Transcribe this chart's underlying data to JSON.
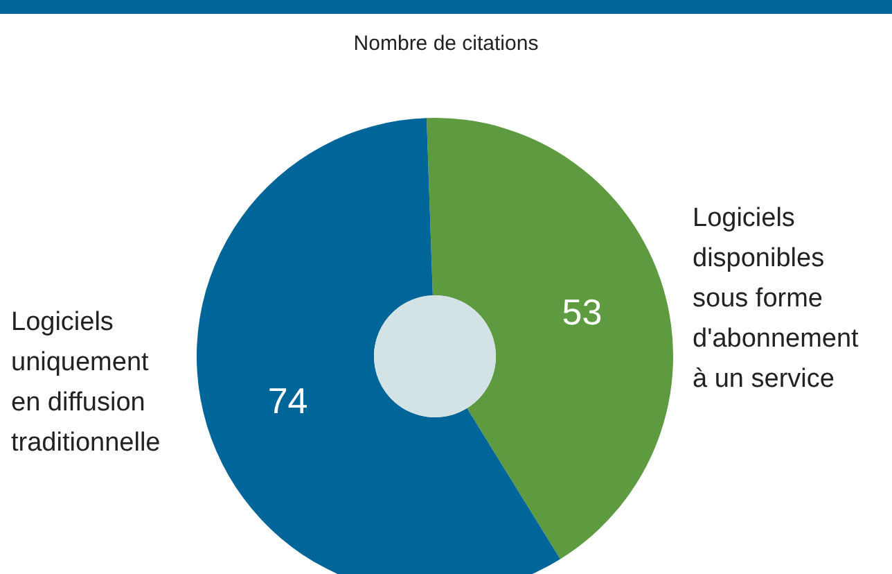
{
  "chart_data": {
    "type": "donut",
    "subtitle": "Nombre de citations",
    "categories": [
      "Logiciels disponibles sous forme d'abonnement à un service",
      "Logiciels uniquement en diffusion traditionnelle"
    ],
    "values": [
      53,
      74
    ],
    "colors": [
      "#5e9a40",
      "#006599"
    ],
    "data_labels": true,
    "legend": false
  }
}
